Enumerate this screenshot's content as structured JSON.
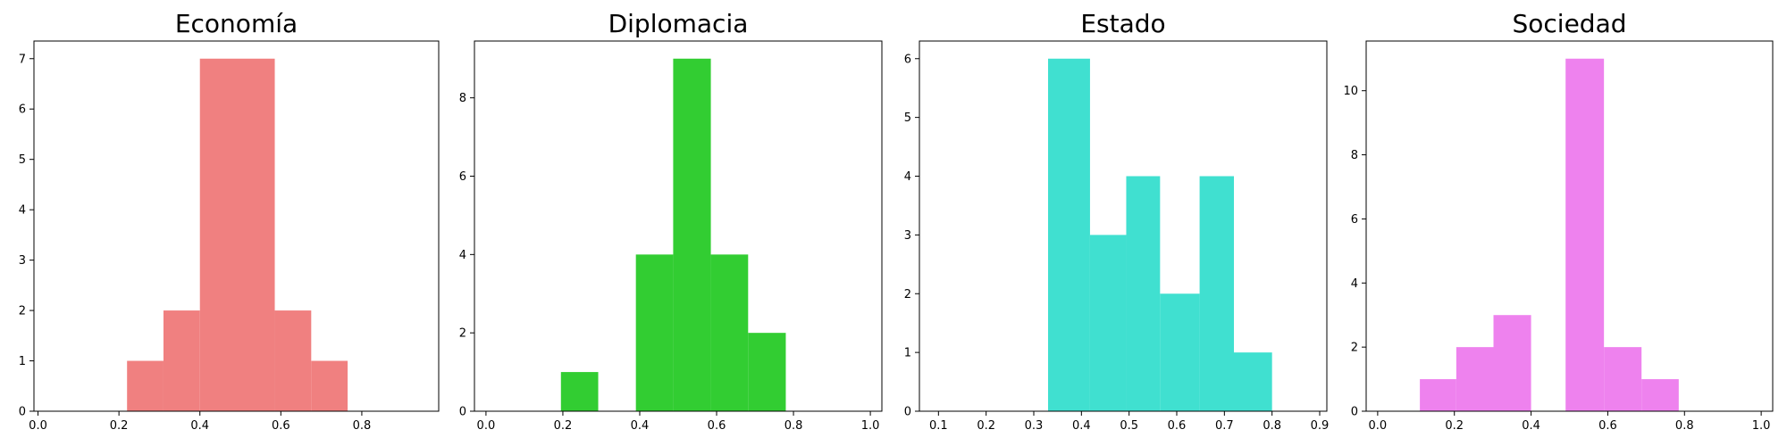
{
  "chart_data": [
    {
      "type": "bar",
      "title": "Economía",
      "color": "#f08080",
      "bins": [
        {
          "x0": 0.22,
          "x1": 0.31,
          "count": 1
        },
        {
          "x0": 0.31,
          "x1": 0.4,
          "count": 2
        },
        {
          "x0": 0.4,
          "x1": 0.585,
          "count": 7
        },
        {
          "x0": 0.585,
          "x1": 0.675,
          "count": 2
        },
        {
          "x0": 0.675,
          "x1": 0.765,
          "count": 1
        }
      ],
      "xlim": [
        -0.01,
        0.99
      ],
      "ylim": [
        0,
        7.35
      ],
      "xticks": [
        0.0,
        0.2,
        0.4,
        0.6,
        0.8
      ],
      "xtick_labels": [
        "0.0",
        "0.2",
        "0.4",
        "0.6",
        "0.8"
      ],
      "yticks": [
        0,
        1,
        2,
        3,
        4,
        5,
        6,
        7
      ],
      "ytick_labels": [
        "0",
        "1",
        "2",
        "3",
        "4",
        "5",
        "6",
        "7"
      ],
      "xlabel": "",
      "ylabel": "",
      "grid": false
    },
    {
      "type": "bar",
      "title": "Diplomacia",
      "color": "#32cd32",
      "bins": [
        {
          "x0": 0.195,
          "x1": 0.292,
          "count": 1
        },
        {
          "x0": 0.39,
          "x1": 0.487,
          "count": 4
        },
        {
          "x0": 0.487,
          "x1": 0.585,
          "count": 9
        },
        {
          "x0": 0.585,
          "x1": 0.682,
          "count": 4
        },
        {
          "x0": 0.682,
          "x1": 0.78,
          "count": 2
        }
      ],
      "xlim": [
        -0.03,
        1.03
      ],
      "ylim": [
        0,
        9.45
      ],
      "xticks": [
        0.0,
        0.2,
        0.4,
        0.6,
        0.8,
        1.0
      ],
      "xtick_labels": [
        "0.0",
        "0.2",
        "0.4",
        "0.6",
        "0.8",
        "1.0"
      ],
      "yticks": [
        0,
        2,
        4,
        6,
        8
      ],
      "ytick_labels": [
        "0",
        "2",
        "4",
        "6",
        "8"
      ],
      "xlabel": "",
      "ylabel": "",
      "grid": false
    },
    {
      "type": "bar",
      "title": "Estado",
      "color": "#40e0d0",
      "bins": [
        {
          "x0": 0.33,
          "x1": 0.418,
          "count": 6
        },
        {
          "x0": 0.418,
          "x1": 0.494,
          "count": 3
        },
        {
          "x0": 0.494,
          "x1": 0.565,
          "count": 4
        },
        {
          "x0": 0.565,
          "x1": 0.648,
          "count": 2
        },
        {
          "x0": 0.648,
          "x1": 0.72,
          "count": 4
        },
        {
          "x0": 0.72,
          "x1": 0.8,
          "count": 1
        }
      ],
      "xlim": [
        0.06,
        0.915
      ],
      "ylim": [
        0,
        6.3
      ],
      "xticks": [
        0.1,
        0.2,
        0.3,
        0.4,
        0.5,
        0.6,
        0.7,
        0.8,
        0.9
      ],
      "xtick_labels": [
        "0.1",
        "0.2",
        "0.3",
        "0.4",
        "0.5",
        "0.6",
        "0.7",
        "0.8",
        "0.9"
      ],
      "yticks": [
        0,
        1,
        2,
        3,
        4,
        5,
        6
      ],
      "ytick_labels": [
        "0",
        "1",
        "2",
        "3",
        "4",
        "5",
        "6"
      ],
      "xlabel": "",
      "ylabel": "",
      "grid": false
    },
    {
      "type": "bar",
      "title": "Sociedad",
      "color": "#ee82ee",
      "bins": [
        {
          "x0": 0.11,
          "x1": 0.205,
          "count": 1
        },
        {
          "x0": 0.205,
          "x1": 0.302,
          "count": 2
        },
        {
          "x0": 0.302,
          "x1": 0.4,
          "count": 3
        },
        {
          "x0": 0.49,
          "x1": 0.59,
          "count": 11
        },
        {
          "x0": 0.59,
          "x1": 0.688,
          "count": 2
        },
        {
          "x0": 0.688,
          "x1": 0.785,
          "count": 1
        }
      ],
      "xlim": [
        -0.03,
        1.03
      ],
      "ylim": [
        0,
        11.55
      ],
      "xticks": [
        0.0,
        0.2,
        0.4,
        0.6,
        0.8,
        1.0
      ],
      "xtick_labels": [
        "0.0",
        "0.2",
        "0.4",
        "0.6",
        "0.8",
        "1.0"
      ],
      "yticks": [
        0,
        2,
        4,
        6,
        8,
        10
      ],
      "ytick_labels": [
        "0",
        "2",
        "4",
        "6",
        "8",
        "10"
      ],
      "xlabel": "",
      "ylabel": "",
      "grid": false
    }
  ]
}
